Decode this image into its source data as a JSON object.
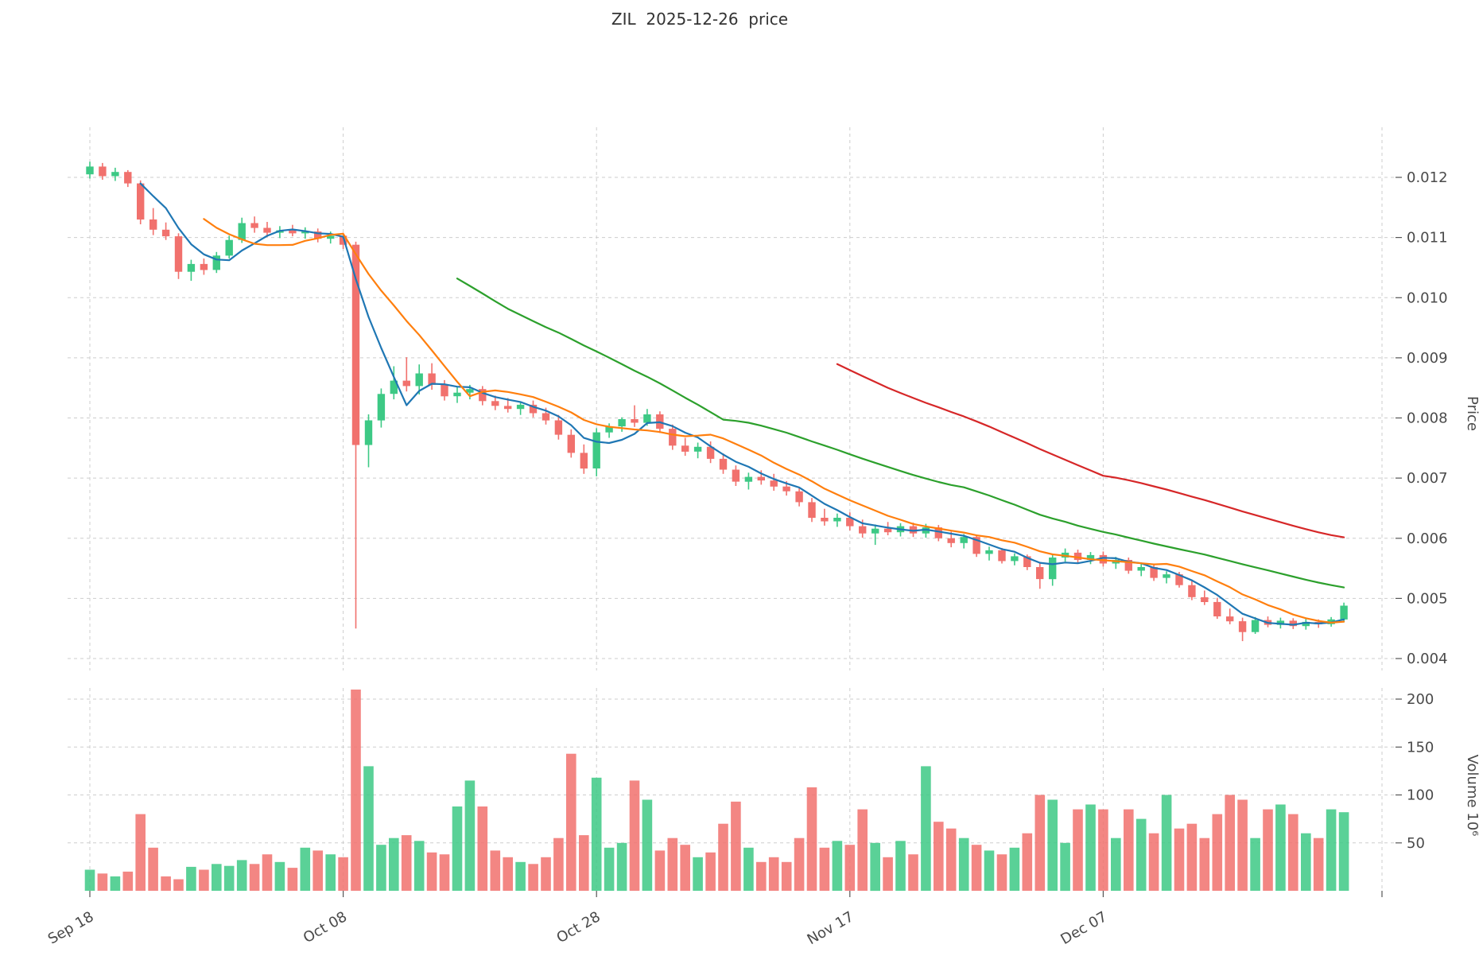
{
  "chart_data": {
    "type": "candlestick",
    "title": "ZIL  2025-12-26  price",
    "price_axis": {
      "label": "Price",
      "ticks": [
        0.004,
        0.005,
        0.006,
        0.007,
        0.008,
        0.009,
        0.01,
        0.011,
        0.012
      ],
      "tick_labels": [
        "0.004",
        "0.005",
        "0.006",
        "0.007",
        "0.008",
        "0.009",
        "0.010",
        "0.011",
        "0.012"
      ],
      "range": [
        0.004,
        0.0125
      ]
    },
    "volume_axis": {
      "label": "Volume 10⁶",
      "ticks": [
        50,
        100,
        150,
        200
      ],
      "tick_labels": [
        "50",
        "100",
        "150",
        "200"
      ],
      "unit_millions": true
    },
    "x_axis": {
      "tick_labels": [
        "Sep 18",
        "Oct 08",
        "Oct 28",
        "Nov 17",
        "Dec 07"
      ],
      "tick_indices": [
        0,
        20,
        40,
        60,
        80
      ]
    },
    "moving_averages": [
      {
        "window": 5,
        "color": "#1f77b4"
      },
      {
        "window": 10,
        "color": "#ff7f0e"
      },
      {
        "window": 30,
        "color": "#2ca02c"
      },
      {
        "window": 60,
        "color": "#d62728"
      }
    ],
    "colors": {
      "up": "#3dc985",
      "down": "#f1716d",
      "grid": "#cdcdcd",
      "text": "#4a4a4a",
      "background": "#ffffff"
    },
    "grid": true,
    "legend": false,
    "candles": {
      "open": [
        0.01205,
        0.01218,
        0.01202,
        0.01209,
        0.0119,
        0.0113,
        0.01113,
        0.01102,
        0.01043,
        0.01056,
        0.01046,
        0.0107,
        0.01096,
        0.01124,
        0.01116,
        0.01108,
        0.01112,
        0.01107,
        0.0111,
        0.01098,
        0.01103,
        0.01088,
        0.00755,
        0.00796,
        0.0084,
        0.00862,
        0.00853,
        0.00874,
        0.00855,
        0.00836,
        0.00842,
        0.00848,
        0.00828,
        0.0082,
        0.00815,
        0.00822,
        0.00808,
        0.00796,
        0.00772,
        0.00742,
        0.00716,
        0.00776,
        0.00786,
        0.00798,
        0.00792,
        0.00806,
        0.00782,
        0.00754,
        0.00744,
        0.00752,
        0.00732,
        0.00714,
        0.00694,
        0.00702,
        0.00696,
        0.00686,
        0.00678,
        0.0066,
        0.00634,
        0.00628,
        0.00634,
        0.0062,
        0.00608,
        0.00616,
        0.0061,
        0.0062,
        0.00608,
        0.00618,
        0.006,
        0.00592,
        0.00602,
        0.00574,
        0.0058,
        0.00562,
        0.0057,
        0.00552,
        0.00532,
        0.00568,
        0.00576,
        0.00564,
        0.00572,
        0.00558,
        0.00564,
        0.00546,
        0.00552,
        0.00534,
        0.0054,
        0.00522,
        0.00502,
        0.00494,
        0.0047,
        0.00462,
        0.00444,
        0.00464,
        0.00456,
        0.00463,
        0.00454,
        0.00461,
        0.00457,
        0.00465
      ],
      "high": [
        0.01226,
        0.01224,
        0.01216,
        0.01212,
        0.01195,
        0.01149,
        0.01125,
        0.01107,
        0.01063,
        0.01065,
        0.01076,
        0.01103,
        0.01133,
        0.01135,
        0.01126,
        0.01119,
        0.01121,
        0.01117,
        0.01115,
        0.0111,
        0.01108,
        0.01093,
        0.00806,
        0.00849,
        0.00886,
        0.00901,
        0.00889,
        0.00891,
        0.00863,
        0.00851,
        0.00855,
        0.00853,
        0.00837,
        0.00833,
        0.00827,
        0.00829,
        0.00817,
        0.00805,
        0.00781,
        0.00756,
        0.00783,
        0.00791,
        0.00801,
        0.00821,
        0.00815,
        0.00811,
        0.00789,
        0.00767,
        0.00759,
        0.00761,
        0.00741,
        0.00721,
        0.00709,
        0.00713,
        0.00707,
        0.00695,
        0.00683,
        0.00667,
        0.00649,
        0.00641,
        0.00643,
        0.00631,
        0.00623,
        0.00627,
        0.00625,
        0.00626,
        0.00624,
        0.00622,
        0.00611,
        0.00607,
        0.00606,
        0.00586,
        0.00584,
        0.00575,
        0.00573,
        0.00558,
        0.00573,
        0.00583,
        0.00581,
        0.00577,
        0.00578,
        0.00569,
        0.00568,
        0.00557,
        0.00556,
        0.00545,
        0.00544,
        0.00531,
        0.00513,
        0.00501,
        0.00483,
        0.00468,
        0.00469,
        0.0047,
        0.00468,
        0.00467,
        0.00466,
        0.00465,
        0.00469,
        0.00493
      ],
      "low": [
        0.01198,
        0.01196,
        0.01194,
        0.01184,
        0.01122,
        0.01104,
        0.01096,
        0.01031,
        0.01028,
        0.01038,
        0.01041,
        0.01065,
        0.01091,
        0.01108,
        0.01101,
        0.01099,
        0.01102,
        0.01098,
        0.01092,
        0.0109,
        0.01081,
        0.0045,
        0.00718,
        0.00784,
        0.00831,
        0.00844,
        0.00839,
        0.00847,
        0.00829,
        0.00825,
        0.00831,
        0.00821,
        0.00813,
        0.00809,
        0.00805,
        0.00801,
        0.00789,
        0.00764,
        0.00734,
        0.00707,
        0.00703,
        0.00767,
        0.00777,
        0.00785,
        0.00787,
        0.00775,
        0.00747,
        0.00737,
        0.00733,
        0.00725,
        0.00707,
        0.00687,
        0.00681,
        0.00689,
        0.00679,
        0.00671,
        0.00653,
        0.00627,
        0.00621,
        0.00619,
        0.00613,
        0.00601,
        0.00589,
        0.00605,
        0.00603,
        0.00602,
        0.00601,
        0.00595,
        0.00585,
        0.00583,
        0.00569,
        0.00563,
        0.00558,
        0.00555,
        0.00547,
        0.00516,
        0.00521,
        0.00561,
        0.00559,
        0.00557,
        0.00553,
        0.00549,
        0.00541,
        0.00537,
        0.00529,
        0.00525,
        0.00518,
        0.00497,
        0.00489,
        0.00466,
        0.00457,
        0.00429,
        0.00441,
        0.00452,
        0.0045,
        0.00449,
        0.00448,
        0.00451,
        0.00453,
        0.0046
      ],
      "close": [
        0.01218,
        0.01202,
        0.01209,
        0.0119,
        0.0113,
        0.01113,
        0.01102,
        0.01043,
        0.01056,
        0.01046,
        0.0107,
        0.01096,
        0.01124,
        0.01116,
        0.01108,
        0.01112,
        0.01107,
        0.0111,
        0.01098,
        0.01103,
        0.01088,
        0.00755,
        0.00796,
        0.0084,
        0.00862,
        0.00853,
        0.00874,
        0.00855,
        0.00836,
        0.00842,
        0.00848,
        0.00828,
        0.0082,
        0.00815,
        0.00822,
        0.00808,
        0.00796,
        0.00772,
        0.00742,
        0.00716,
        0.00776,
        0.00786,
        0.00798,
        0.00792,
        0.00806,
        0.00782,
        0.00754,
        0.00744,
        0.00752,
        0.00732,
        0.00714,
        0.00694,
        0.00702,
        0.00696,
        0.00686,
        0.00678,
        0.0066,
        0.00634,
        0.00628,
        0.00634,
        0.0062,
        0.00608,
        0.00616,
        0.0061,
        0.0062,
        0.00608,
        0.00618,
        0.006,
        0.00592,
        0.00602,
        0.00574,
        0.0058,
        0.00562,
        0.0057,
        0.00552,
        0.00532,
        0.00568,
        0.00576,
        0.00564,
        0.00572,
        0.00558,
        0.00564,
        0.00546,
        0.00552,
        0.00534,
        0.0054,
        0.00522,
        0.00502,
        0.00494,
        0.0047,
        0.00462,
        0.00444,
        0.00464,
        0.00456,
        0.00463,
        0.00454,
        0.00461,
        0.00457,
        0.00465,
        0.00488
      ],
      "volume_millions": [
        22,
        18,
        15,
        20,
        80,
        45,
        15,
        12,
        25,
        22,
        28,
        26,
        32,
        28,
        38,
        30,
        24,
        45,
        42,
        38,
        35,
        210,
        130,
        48,
        55,
        58,
        52,
        40,
        38,
        88,
        115,
        88,
        42,
        35,
        30,
        28,
        35,
        55,
        143,
        58,
        118,
        45,
        50,
        115,
        95,
        42,
        55,
        48,
        35,
        40,
        70,
        93,
        45,
        30,
        35,
        30,
        55,
        108,
        45,
        52,
        48,
        85,
        50,
        35,
        52,
        38,
        130,
        72,
        65,
        55,
        48,
        42,
        38,
        45,
        60,
        100,
        95,
        50,
        85,
        90,
        85,
        55,
        85,
        75,
        60,
        100,
        65,
        70,
        55,
        80,
        100,
        95,
        55,
        85,
        90,
        80,
        60,
        55,
        85,
        82
      ]
    }
  }
}
